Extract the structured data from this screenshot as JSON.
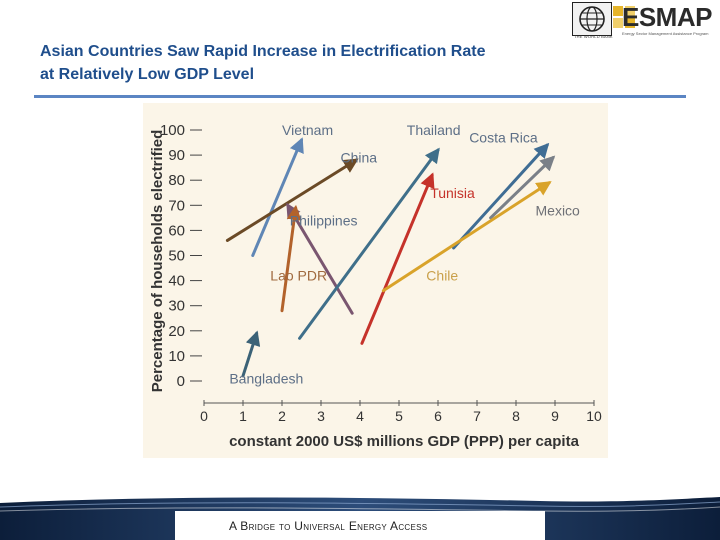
{
  "header": {
    "title_line1": "Asian Countries Saw Rapid Increase in Electrification Rate",
    "title_line2": "at Relatively Low GDP Level",
    "logo_text": "ESMAP",
    "logo_subtext": "Energy Sector Management Assistance Program",
    "logo_partner": "THE WORLD BANK"
  },
  "footer": {
    "tagline": "A Bridge to Universal Energy Access"
  },
  "colors": {
    "title": "#1f4e8c",
    "rule": "#5b85c3",
    "chart_bg": "#fbf5e8"
  },
  "chart_data": {
    "type": "line",
    "title": "",
    "xlabel": "constant 2000 US$ millions GDP (PPP) per capita",
    "ylabel": "Percentage of households electrified",
    "xlim": [
      0,
      10
    ],
    "ylim": [
      0,
      100
    ],
    "xticks": [
      0,
      1,
      2,
      3,
      4,
      5,
      6,
      7,
      8,
      9,
      10
    ],
    "yticks": [
      0,
      10,
      20,
      30,
      40,
      50,
      60,
      70,
      80,
      90,
      100
    ],
    "series": [
      {
        "name": "Vietnam",
        "color": "#5f86b5",
        "points": [
          [
            1.25,
            50
          ],
          [
            2.5,
            96
          ]
        ]
      },
      {
        "name": "China",
        "color": "#6b4a26",
        "points": [
          [
            0.6,
            56
          ],
          [
            3.9,
            88
          ]
        ]
      },
      {
        "name": "Philippines",
        "color": "#7a5670",
        "points": [
          [
            3.8,
            27
          ],
          [
            2.15,
            70
          ]
        ]
      },
      {
        "name": "Lao PDR",
        "color": "#b2622b",
        "points": [
          [
            2.0,
            28
          ],
          [
            2.35,
            69
          ]
        ]
      },
      {
        "name": "Bangladesh",
        "color": "#3b6277",
        "points": [
          [
            1.0,
            2
          ],
          [
            1.35,
            19
          ]
        ]
      },
      {
        "name": "Thailand",
        "color": "#3f6f8a",
        "points": [
          [
            2.45,
            17
          ],
          [
            6.0,
            92
          ]
        ]
      },
      {
        "name": "Tunisia",
        "color": "#c5322a",
        "points": [
          [
            4.05,
            15
          ],
          [
            5.85,
            82
          ]
        ]
      },
      {
        "name": "Costa Rica",
        "color": "#3f6d94",
        "points": [
          [
            6.4,
            53
          ],
          [
            8.8,
            94
          ]
        ]
      },
      {
        "name": "Mexico",
        "color": "#7a8088",
        "points": [
          [
            7.35,
            65
          ],
          [
            8.95,
            89
          ]
        ]
      },
      {
        "name": "Chile",
        "color": "#d9a32a",
        "points": [
          [
            4.6,
            36
          ],
          [
            8.85,
            79
          ]
        ]
      }
    ],
    "annotations": [
      "Vietnam",
      "China",
      "Thailand",
      "Costa Rica",
      "Tunisia",
      "Mexico",
      "Philippines",
      "Lao PDR",
      "Chile",
      "Bangladesh"
    ]
  }
}
